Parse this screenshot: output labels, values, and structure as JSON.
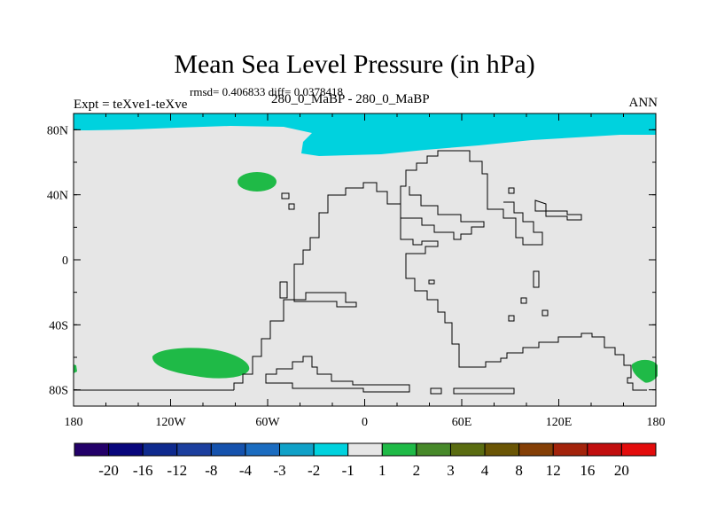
{
  "title": "Mean Sea Level Pressure (in hPa)",
  "stats_line": "rmsd= 0.406833 diff= 0.0378418",
  "left_label": "Expt = teXve1-teXve",
  "subtitle": "280_0_MaBP - 280_0_MaBP",
  "season": "ANN",
  "chart_data": {
    "type": "contour-map",
    "title": "Mean Sea Level Pressure (in hPa)",
    "units": "hPa",
    "x_ticks": [
      "180",
      "120W",
      "60W",
      "0",
      "60E",
      "120E",
      "180"
    ],
    "y_ticks": [
      "80N",
      "40N",
      "0",
      "40S",
      "80S"
    ],
    "xlim": [
      -180,
      180
    ],
    "ylim": [
      -90,
      90
    ],
    "colorbar": {
      "labels": [
        "-20",
        "-16",
        "-12",
        "-8",
        "-4",
        "-3",
        "-2",
        "-1",
        "1",
        "2",
        "3",
        "4",
        "8",
        "12",
        "16",
        "20"
      ],
      "colors": [
        "#230069",
        "#08067c",
        "#0f2a8e",
        "#1c3f9e",
        "#1552ad",
        "#1b6cc0",
        "#10a1c8",
        "#00d2de",
        "#e6e6e6",
        "#1fba47",
        "#47892a",
        "#5a6c11",
        "#6a5505",
        "#843f06",
        "#a3230b",
        "#c10e0e",
        "#e30c0c"
      ]
    },
    "regions": [
      {
        "level": "-2 to -1",
        "color": "#00d2de",
        "area": "Arctic band north of ~75N"
      },
      {
        "level": "1 to 2",
        "color": "#1fba47",
        "area": "North Pacific near 60W, 50N"
      },
      {
        "level": "1 to 2",
        "color": "#1fba47",
        "area": "South Pacific near 130W, 60S"
      },
      {
        "level": "1 to 2",
        "color": "#1fba47",
        "area": "near 170E, 70S"
      }
    ],
    "background": {
      "level": "-1 to 1",
      "color": "#e6e6e6"
    }
  }
}
